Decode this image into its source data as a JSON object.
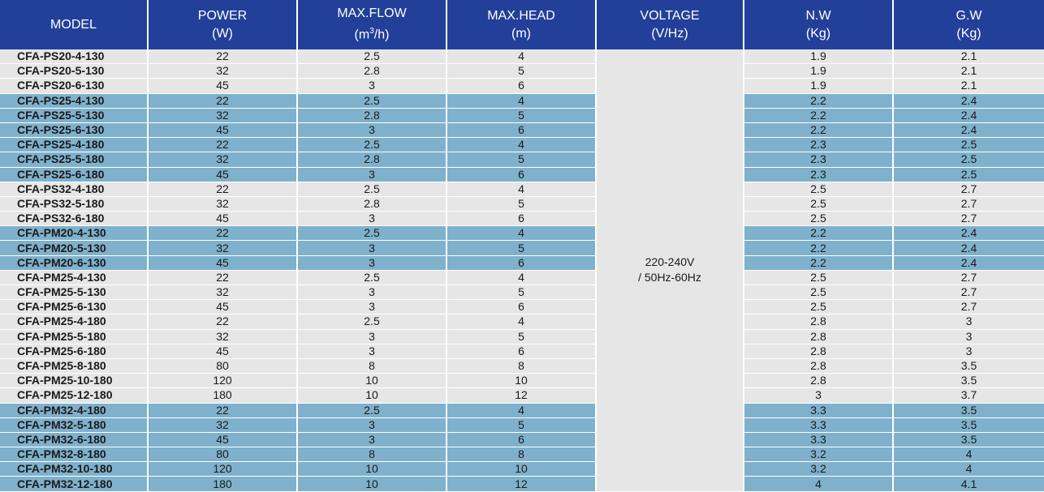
{
  "headers": {
    "model": "MODEL",
    "power": "POWER",
    "power_unit": "(W)",
    "flow": "MAX.FLOW",
    "flow_unit_pre": "(m",
    "flow_unit_sup": "3",
    "flow_unit_post": "/h)",
    "head": "MAX.HEAD",
    "head_unit": "(m)",
    "voltage": "VOLTAGE",
    "voltage_unit": "(V/Hz)",
    "nw": "N.W",
    "nw_unit": "(Kg)",
    "gw": "G.W",
    "gw_unit": "(Kg)"
  },
  "voltage": {
    "line1": "220-240V",
    "line2": "/ 50Hz-60Hz"
  },
  "colors": {
    "header_bg": "#22409a",
    "row_light": "#e6e6e7",
    "row_highlight": "#7fb1cc"
  },
  "rows": [
    {
      "model": "CFA-PS20-4-130",
      "power": "22",
      "flow": "2.5",
      "head": "4",
      "nw": "1.9",
      "gw": "2.1",
      "highlight": false
    },
    {
      "model": "CFA-PS20-5-130",
      "power": "32",
      "flow": "2.8",
      "head": "5",
      "nw": "1.9",
      "gw": "2.1",
      "highlight": false
    },
    {
      "model": "CFA-PS20-6-130",
      "power": "45",
      "flow": "3",
      "head": "6",
      "nw": "1.9",
      "gw": "2.1",
      "highlight": false
    },
    {
      "model": "CFA-PS25-4-130",
      "power": "22",
      "flow": "2.5",
      "head": "4",
      "nw": "2.2",
      "gw": "2.4",
      "highlight": true
    },
    {
      "model": "CFA-PS25-5-130",
      "power": "32",
      "flow": "2.8",
      "head": "5",
      "nw": "2.2",
      "gw": "2.4",
      "highlight": true
    },
    {
      "model": "CFA-PS25-6-130",
      "power": "45",
      "flow": "3",
      "head": "6",
      "nw": "2.2",
      "gw": "2.4",
      "highlight": true
    },
    {
      "model": "CFA-PS25-4-180",
      "power": "22",
      "flow": "2.5",
      "head": "4",
      "nw": "2.3",
      "gw": "2.5",
      "highlight": true
    },
    {
      "model": "CFA-PS25-5-180",
      "power": "32",
      "flow": "2.8",
      "head": "5",
      "nw": "2.3",
      "gw": "2.5",
      "highlight": true
    },
    {
      "model": "CFA-PS25-6-180",
      "power": "45",
      "flow": "3",
      "head": "6",
      "nw": "2.3",
      "gw": "2.5",
      "highlight": true
    },
    {
      "model": "CFA-PS32-4-180",
      "power": "22",
      "flow": "2.5",
      "head": "4",
      "nw": "2.5",
      "gw": "2.7",
      "highlight": false
    },
    {
      "model": "CFA-PS32-5-180",
      "power": "32",
      "flow": "2.8",
      "head": "5",
      "nw": "2.5",
      "gw": "2.7",
      "highlight": false
    },
    {
      "model": "CFA-PS32-6-180",
      "power": "45",
      "flow": "3",
      "head": "6",
      "nw": "2.5",
      "gw": "2.7",
      "highlight": false
    },
    {
      "model": "CFA-PM20-4-130",
      "power": "22",
      "flow": "2.5",
      "head": "4",
      "nw": "2.2",
      "gw": "2.4",
      "highlight": true
    },
    {
      "model": "CFA-PM20-5-130",
      "power": "32",
      "flow": "3",
      "head": "5",
      "nw": "2.2",
      "gw": "2.4",
      "highlight": true
    },
    {
      "model": "CFA-PM20-6-130",
      "power": "45",
      "flow": "3",
      "head": "6",
      "nw": "2.2",
      "gw": "2.4",
      "highlight": true
    },
    {
      "model": "CFA-PM25-4-130",
      "power": "22",
      "flow": "2.5",
      "head": "4",
      "nw": "2.5",
      "gw": "2.7",
      "highlight": false
    },
    {
      "model": "CFA-PM25-5-130",
      "power": "32",
      "flow": "3",
      "head": "5",
      "nw": "2.5",
      "gw": "2.7",
      "highlight": false
    },
    {
      "model": "CFA-PM25-6-130",
      "power": "45",
      "flow": "3",
      "head": "6",
      "nw": "2.5",
      "gw": "2.7",
      "highlight": false
    },
    {
      "model": "CFA-PM25-4-180",
      "power": "22",
      "flow": "2.5",
      "head": "4",
      "nw": "2.8",
      "gw": "3",
      "highlight": false
    },
    {
      "model": "CFA-PM25-5-180",
      "power": "32",
      "flow": "3",
      "head": "5",
      "nw": "2.8",
      "gw": "3",
      "highlight": false
    },
    {
      "model": "CFA-PM25-6-180",
      "power": "45",
      "flow": "3",
      "head": "6",
      "nw": "2.8",
      "gw": "3",
      "highlight": false
    },
    {
      "model": "CFA-PM25-8-180",
      "power": "80",
      "flow": "8",
      "head": "8",
      "nw": "2.8",
      "gw": "3.5",
      "highlight": false
    },
    {
      "model": "CFA-PM25-10-180",
      "power": "120",
      "flow": "10",
      "head": "10",
      "nw": "2.8",
      "gw": "3.5",
      "highlight": false
    },
    {
      "model": "CFA-PM25-12-180",
      "power": "180",
      "flow": "10",
      "head": "12",
      "nw": "3",
      "gw": "3.7",
      "highlight": false
    },
    {
      "model": "CFA-PM32-4-180",
      "power": "22",
      "flow": "2.5",
      "head": "4",
      "nw": "3.3",
      "gw": "3.5",
      "highlight": true
    },
    {
      "model": "CFA-PM32-5-180",
      "power": "32",
      "flow": "3",
      "head": "5",
      "nw": "3.3",
      "gw": "3.5",
      "highlight": true
    },
    {
      "model": "CFA-PM32-6-180",
      "power": "45",
      "flow": "3",
      "head": "6",
      "nw": "3.3",
      "gw": "3.5",
      "highlight": true
    },
    {
      "model": "CFA-PM32-8-180",
      "power": "80",
      "flow": "8",
      "head": "8",
      "nw": "3.2",
      "gw": "4",
      "highlight": true
    },
    {
      "model": "CFA-PM32-10-180",
      "power": "120",
      "flow": "10",
      "head": "10",
      "nw": "3.2",
      "gw": "4",
      "highlight": true
    },
    {
      "model": "CFA-PM32-12-180",
      "power": "180",
      "flow": "10",
      "head": "12",
      "nw": "4",
      "gw": "4.1",
      "highlight": true
    }
  ]
}
